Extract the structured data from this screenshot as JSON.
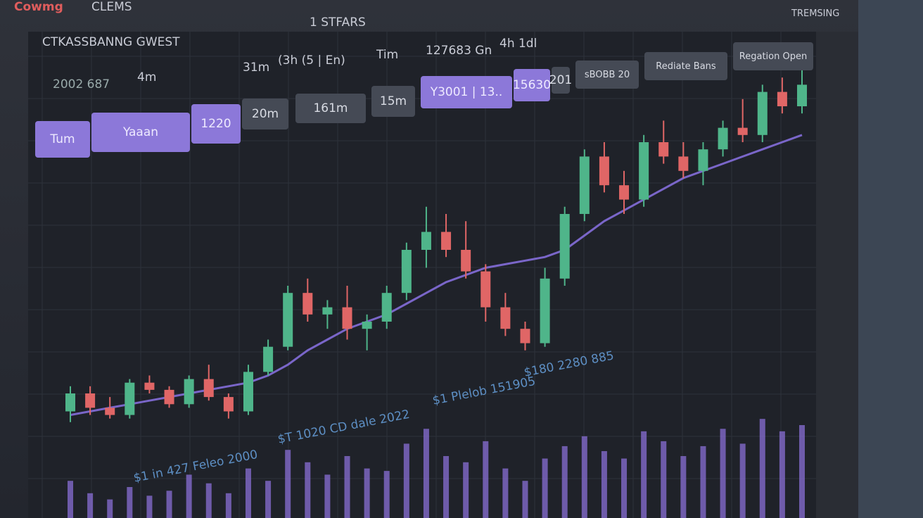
{
  "header": {
    "brand": "Cowmg",
    "menu": "CLEMS",
    "center": "1 STFARS",
    "user": "TREMSING"
  },
  "toolbar": {
    "title": "CTKASSBANNG GWEST",
    "price": "2002 687",
    "intervals": [
      "4m",
      "31m",
      "(3h (5 | En)",
      "Tim",
      "127683 Gn",
      "4h 1dl"
    ]
  },
  "tabs": [
    "Tum",
    "Yaaan",
    "1220",
    "20m",
    "161m",
    "15m",
    "Y3001 | 13..",
    "15630",
    "201",
    "sBOBB 20",
    "Rediate Bans",
    "Regation Open"
  ],
  "annotations": [
    "$1 Plelob 151905",
    "$180 2280 885",
    "$T 1020 CD dale 2022",
    "$1 in 427 Feleo 2000"
  ],
  "chart": {
    "type": "candlestick",
    "up_color": "#4fb58a",
    "down_color": "#e06666",
    "ma_color": "#7a66c9",
    "volume_color": "#8a6fd6",
    "ylim": [
      0,
      100
    ],
    "volume_ylim": [
      0,
      100
    ],
    "open": [
      5,
      10,
      6,
      4,
      13,
      11,
      7,
      14,
      9,
      5,
      16,
      23,
      38,
      32,
      34,
      28,
      30,
      38,
      50,
      55,
      50,
      44,
      34,
      28,
      24,
      42,
      60,
      76,
      68,
      64,
      80,
      76,
      72,
      78,
      84,
      82,
      94,
      90
    ],
    "high": [
      12,
      12,
      9,
      14,
      15,
      12,
      15,
      18,
      10,
      18,
      25,
      40,
      42,
      36,
      40,
      32,
      40,
      52,
      62,
      60,
      58,
      46,
      38,
      30,
      45,
      62,
      78,
      80,
      72,
      82,
      86,
      80,
      80,
      86,
      92,
      96,
      98,
      100
    ],
    "low": [
      2,
      4,
      3,
      3,
      10,
      6,
      6,
      8,
      3,
      4,
      15,
      22,
      30,
      28,
      25,
      22,
      28,
      36,
      45,
      48,
      42,
      30,
      26,
      22,
      23,
      40,
      58,
      66,
      60,
      62,
      74,
      70,
      68,
      76,
      80,
      80,
      88,
      88
    ],
    "close": [
      10,
      6,
      4,
      13,
      11,
      7,
      14,
      9,
      5,
      16,
      23,
      38,
      32,
      34,
      28,
      30,
      38,
      50,
      55,
      50,
      44,
      34,
      28,
      24,
      42,
      60,
      76,
      68,
      64,
      80,
      76,
      72,
      78,
      84,
      82,
      94,
      90,
      96
    ],
    "ma": [
      4,
      5,
      6,
      7,
      8,
      9,
      10,
      11,
      12,
      13,
      15,
      18,
      22,
      25,
      28,
      30,
      32,
      35,
      38,
      41,
      43,
      45,
      46,
      47,
      48,
      50,
      54,
      58,
      61,
      64,
      67,
      70,
      72,
      74,
      76,
      78,
      80,
      82
    ],
    "volume": [
      30,
      20,
      15,
      25,
      18,
      22,
      35,
      28,
      20,
      40,
      30,
      55,
      45,
      35,
      50,
      40,
      38,
      60,
      72,
      50,
      45,
      62,
      40,
      30,
      48,
      58,
      66,
      54,
      48,
      70,
      62,
      50,
      58,
      72,
      60,
      80,
      70,
      75
    ]
  }
}
